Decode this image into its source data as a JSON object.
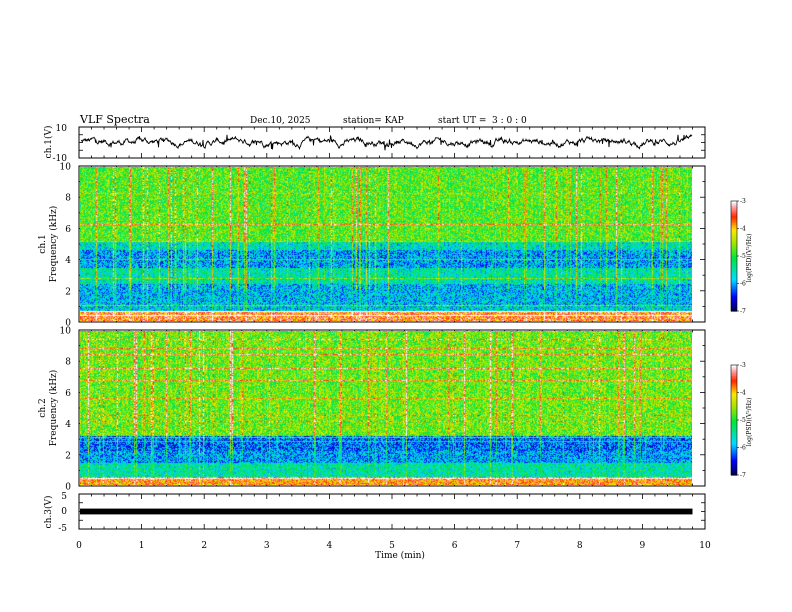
{
  "header": {
    "title": "VLF Spectra",
    "date": "Dec.10, 2025",
    "station": "station= KAP",
    "start_label": "start  UT  =",
    "start_time": "3  : 0  : 0"
  },
  "chart_data": [
    {
      "type": "line",
      "name": "ch1-waveform",
      "ylabel": "ch.1(V)",
      "ylim": [
        -10,
        10
      ],
      "yticks": [
        "10",
        "-10"
      ],
      "xlim": [
        0,
        10
      ],
      "data_extent_min": 9.8,
      "description_values": {
        "mean": 0.5,
        "min": -5,
        "max": 5
      }
    },
    {
      "type": "heatmap",
      "name": "ch1-spectrogram",
      "ylabel_line1": "ch.1",
      "ylabel_line2": "Frequency  (kHz)",
      "ylim": [
        0,
        10
      ],
      "yticks": [
        "0",
        "2",
        "4",
        "6",
        "8",
        "10"
      ],
      "xlim": [
        0,
        10
      ],
      "data_extent_min": 9.8,
      "colorbar": {
        "label": "log(PSD)(V²/Hz)",
        "ticks": [
          "-3",
          "-4",
          "-5",
          "-6",
          "-7"
        ],
        "range": [
          -7,
          -3
        ]
      },
      "bands": [
        {
          "from_khz": 0.0,
          "to_khz": 0.6,
          "level": -3.6
        },
        {
          "from_khz": 0.6,
          "to_khz": 1.0,
          "level": -5.8
        },
        {
          "from_khz": 1.0,
          "to_khz": 2.4,
          "level": -5.9
        },
        {
          "from_khz": 2.4,
          "to_khz": 3.4,
          "level": -5.5
        },
        {
          "from_khz": 3.4,
          "to_khz": 4.6,
          "level": -6.0
        },
        {
          "from_khz": 4.6,
          "to_khz": 5.2,
          "level": -5.6
        },
        {
          "from_khz": 5.2,
          "to_khz": 10.0,
          "level": -4.8
        }
      ]
    },
    {
      "type": "heatmap",
      "name": "ch2-spectrogram",
      "ylabel_line1": "ch.2",
      "ylabel_line2": "Frequency  (kHz)",
      "ylim": [
        0,
        10
      ],
      "yticks": [
        "0",
        "2",
        "4",
        "6",
        "8",
        "10"
      ],
      "xlim": [
        0,
        10
      ],
      "data_extent_min": 9.8,
      "colorbar": {
        "label": "log(PSD)(V²/Hz)",
        "ticks": [
          "-3",
          "-4",
          "-5",
          "-6",
          "-7"
        ],
        "range": [
          -7,
          -3
        ]
      },
      "bands": [
        {
          "from_khz": 0.0,
          "to_khz": 0.5,
          "level": -3.8
        },
        {
          "from_khz": 0.5,
          "to_khz": 1.4,
          "level": -5.5
        },
        {
          "from_khz": 1.4,
          "to_khz": 2.2,
          "level": -6.0
        },
        {
          "from_khz": 2.2,
          "to_khz": 3.2,
          "level": -6.2
        },
        {
          "from_khz": 3.2,
          "to_khz": 10.0,
          "level": -4.7
        }
      ]
    },
    {
      "type": "line",
      "name": "ch3-waveform",
      "ylabel": "ch.3(V)",
      "ylim": [
        -5,
        5
      ],
      "yticks": [
        "5",
        "0",
        "-5"
      ],
      "xlim": [
        0,
        10
      ],
      "data_extent_min": 9.8,
      "xlabel": "Time  (min)",
      "xticks": [
        "0",
        "1",
        "2",
        "3",
        "4",
        "5",
        "6",
        "7",
        "8",
        "9",
        "10"
      ],
      "description_values": {
        "mean": 0.0,
        "min": -0.4,
        "max": 0.4
      }
    }
  ]
}
